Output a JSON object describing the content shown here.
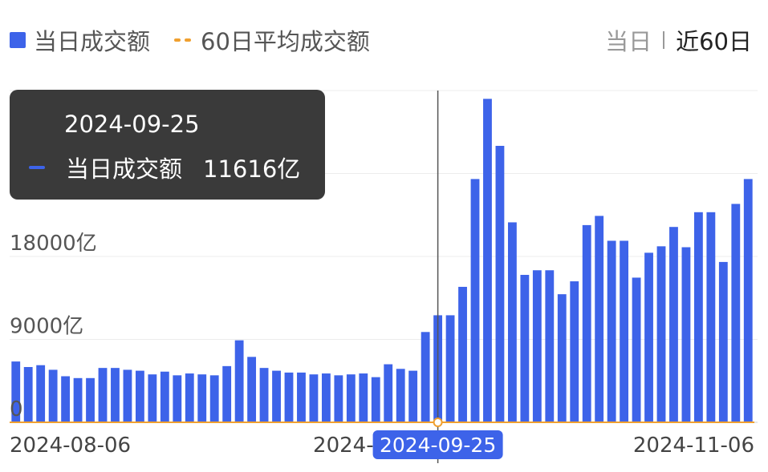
{
  "legend": {
    "daily_label": "当日成交额",
    "avg_label": "60日平均成交额"
  },
  "period": {
    "day_label": "当日",
    "range_label": "近60日"
  },
  "tooltip": {
    "date": "2024-09-25",
    "series_name": "当日成交额",
    "value_text": "11616亿"
  },
  "colors": {
    "bar": "#3d63e9",
    "avg_line": "#f0a030",
    "crosshair": "#555555",
    "highlight_label_bg": "#3d63e9"
  },
  "chart_data": {
    "type": "bar",
    "ylim": [
      0,
      36000
    ],
    "y_ticks": [
      0,
      9000,
      18000,
      27000,
      36000
    ],
    "y_tick_labels": [
      "0",
      "9000亿",
      "18000亿",
      "",
      ""
    ],
    "x_tick_labels": [
      "2024-08-06",
      "2024-",
      "2024-11-06"
    ],
    "x_tick_indices": [
      0,
      34,
      59
    ],
    "highlight": {
      "index": 34,
      "label": "2024-09-25"
    },
    "series": [
      {
        "values": [
          6600,
          6000,
          6200,
          5700,
          5000,
          4800,
          4800,
          5900,
          5900,
          5700,
          5600,
          5200,
          5500,
          5100,
          5300,
          5200,
          5100,
          6100,
          8900,
          7100,
          5900,
          5600,
          5400,
          5400,
          5200,
          5300,
          5100,
          5200,
          5300,
          4900,
          6300,
          5800,
          5600,
          9800,
          11616,
          11616,
          14700,
          26400,
          35100,
          30000,
          21700,
          16000,
          16500,
          16500,
          13900,
          15300,
          21400,
          22400,
          19700,
          19700,
          15700,
          18400,
          19100,
          21200,
          19000,
          22800,
          22800,
          17400,
          23700,
          26400
        ]
      }
    ],
    "avg_series": {
      "name": "60日平均成交额",
      "values": null
    }
  }
}
